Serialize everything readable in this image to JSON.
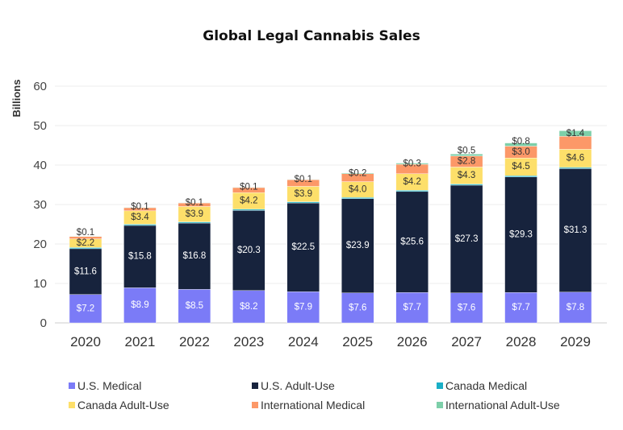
{
  "chart_data": {
    "type": "bar",
    "stacked": true,
    "title": "Global Legal Cannabis Sales",
    "xlabel": "",
    "ylabel": "Billions",
    "ylim": [
      0,
      60
    ],
    "yticks": [
      "0",
      "10",
      "20",
      "30",
      "40",
      "50",
      "60"
    ],
    "grid": true,
    "legend_position": "bottom",
    "categories": [
      "2020",
      "2021",
      "2022",
      "2023",
      "2024",
      "2025",
      "2026",
      "2027",
      "2028",
      "2029"
    ],
    "series": [
      {
        "name": "U.S. Medical",
        "color": "#7B7BF7",
        "label_color": "#ffffff",
        "values": [
          7.2,
          8.9,
          8.5,
          8.2,
          7.9,
          7.6,
          7.7,
          7.6,
          7.7,
          7.8
        ],
        "labels": [
          "$7.2",
          "$8.9",
          "$8.5",
          "$8.2",
          "$7.9",
          "$7.6",
          "$7.7",
          "$7.6",
          "$7.7",
          "$7.8"
        ]
      },
      {
        "name": "U.S. Adult-Use",
        "color": "#17233D",
        "label_color": "#ffffff",
        "values": [
          11.6,
          15.8,
          16.8,
          20.3,
          22.5,
          23.9,
          25.6,
          27.3,
          29.3,
          31.3
        ],
        "labels": [
          "$11.6",
          "$15.8",
          "$16.8",
          "$20.3",
          "$22.5",
          "$23.9",
          "$25.6",
          "$27.3",
          "$29.3",
          "$31.3"
        ]
      },
      {
        "name": "Canada Medical",
        "color": "#1AAFC7",
        "label_color": "#333333",
        "values": [
          0.3,
          0.3,
          0.3,
          0.3,
          0.3,
          0.3,
          0.3,
          0.3,
          0.3,
          0.3
        ],
        "labels": [
          null,
          null,
          null,
          null,
          null,
          null,
          null,
          null,
          null,
          null
        ]
      },
      {
        "name": "Canada Adult-Use",
        "color": "#FDDF6A",
        "label_color": "#333333",
        "values": [
          2.2,
          3.4,
          3.9,
          4.2,
          3.9,
          4.0,
          4.2,
          4.3,
          4.5,
          4.6
        ],
        "labels": [
          "$2.2",
          "$3.4",
          "$3.9",
          "$4.2",
          "$3.9",
          "$4.0",
          "$4.2",
          "$4.3",
          "$4.5",
          "$4.6"
        ]
      },
      {
        "name": "International Medical",
        "color": "#FC9868",
        "label_color": "#333333",
        "values": [
          0.6,
          0.8,
          0.9,
          1.3,
          1.7,
          2.0,
          2.4,
          2.8,
          3.0,
          3.3
        ],
        "labels": [
          null,
          null,
          null,
          null,
          null,
          null,
          null,
          "$2.8",
          "$3.0",
          null
        ]
      },
      {
        "name": "International Adult-Use",
        "color": "#7DCFA9",
        "label_color": "#333333",
        "values": [
          0.1,
          0.1,
          0.1,
          0.1,
          0.1,
          0.2,
          0.3,
          0.5,
          0.8,
          1.4
        ],
        "labels": [
          "$0.1",
          "$0.1",
          "$0.1",
          "$0.1",
          "$0.1",
          "$0.2",
          "$0.3",
          "$0.5",
          "$0.8",
          "$1.4"
        ]
      }
    ]
  }
}
